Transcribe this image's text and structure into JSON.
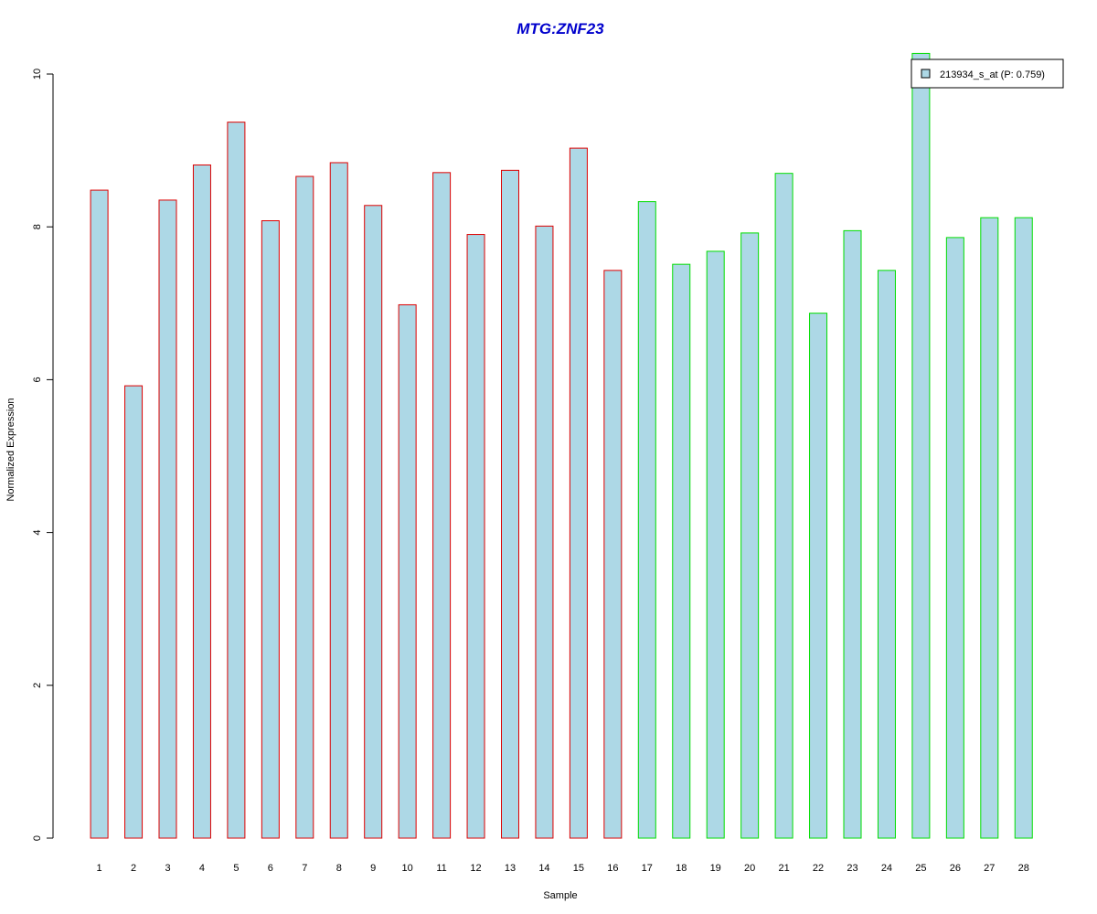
{
  "chart_data": {
    "type": "bar",
    "title": "MTG:ZNF23",
    "xlabel": "Sample",
    "ylabel": "Normalized Expression",
    "ylim": [
      0,
      10
    ],
    "y_ticks": [
      "0",
      "2",
      "4",
      "6",
      "8",
      "10"
    ],
    "categories": [
      "1",
      "2",
      "3",
      "4",
      "5",
      "6",
      "7",
      "8",
      "9",
      "10",
      "11",
      "12",
      "13",
      "14",
      "15",
      "16",
      "17",
      "18",
      "19",
      "20",
      "21",
      "22",
      "23",
      "24",
      "25",
      "26",
      "27",
      "28"
    ],
    "series": [
      {
        "name": "213934_s_at (P: 0.759)",
        "values": [
          8.48,
          5.92,
          8.35,
          8.81,
          9.37,
          8.08,
          8.66,
          8.84,
          8.28,
          6.98,
          8.71,
          7.9,
          8.74,
          8.01,
          9.03,
          7.43,
          8.33,
          7.51,
          7.68,
          7.92,
          8.7,
          6.87,
          7.95,
          7.43,
          10.27,
          7.86,
          8.12,
          8.12
        ]
      }
    ],
    "groups": [
      {
        "samples": "1-16",
        "border_color": "#dd0000"
      },
      {
        "samples": "17-28",
        "border_color": "#00dd00"
      }
    ],
    "legend_position": "top-right",
    "grid": false
  },
  "colors": {
    "bar_fill": "#add8e6",
    "title": "#0000cc",
    "axis": "#000000"
  }
}
